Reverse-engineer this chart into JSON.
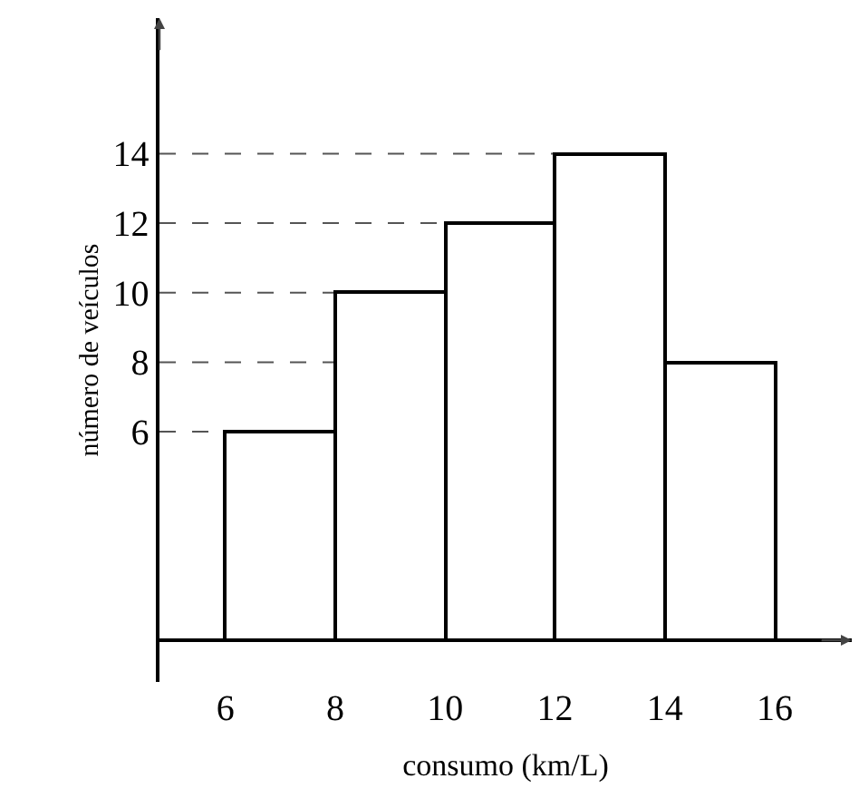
{
  "chart_data": {
    "type": "histogram",
    "xlabel": "consumo (km/L)",
    "ylabel": "número de veículos",
    "bins": [
      6,
      8,
      10,
      12,
      14,
      16
    ],
    "values": [
      6,
      10,
      12,
      14,
      8
    ],
    "color": "#ffffff",
    "xlim": [
      4.8,
      17.4
    ],
    "ylim": [
      -1.2,
      17.9
    ],
    "xticks": [
      6,
      8,
      10,
      12,
      14,
      16
    ],
    "yticks": [
      6,
      8,
      10,
      12,
      14
    ],
    "ref_lines": [
      {
        "axis": "y",
        "value": 6,
        "color": "#555555",
        "line_style": "dashed"
      },
      {
        "axis": "y",
        "value": 8,
        "color": "#555555",
        "line_style": "dashed"
      },
      {
        "axis": "y",
        "value": 10,
        "color": "#555555",
        "line_style": "dashed"
      },
      {
        "axis": "y",
        "value": 12,
        "color": "#555555",
        "line_style": "dashed"
      },
      {
        "axis": "y",
        "value": 14,
        "color": "#555555",
        "line_style": "dashed"
      }
    ]
  }
}
